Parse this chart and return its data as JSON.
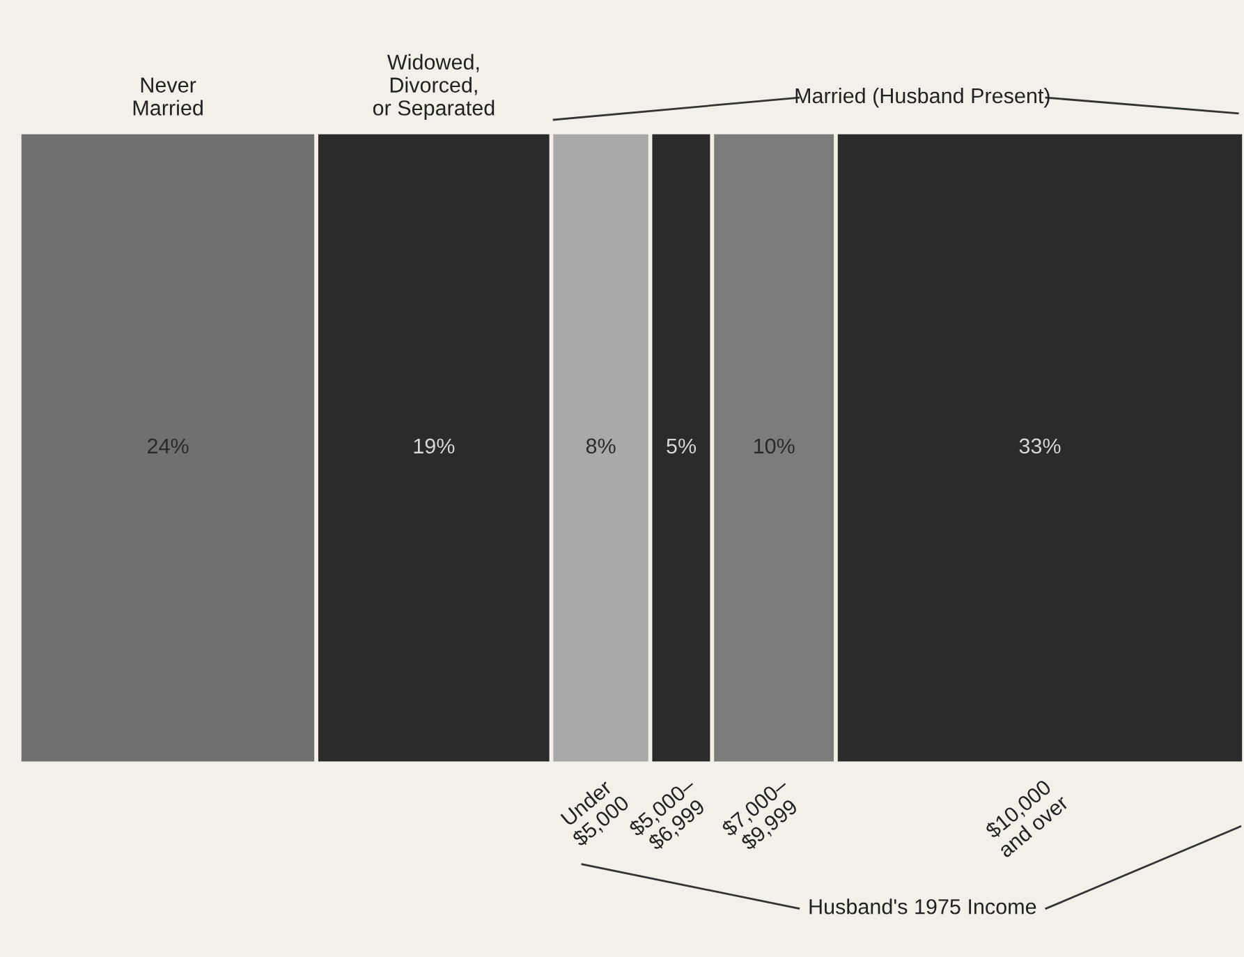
{
  "chart_data": {
    "type": "bar",
    "orientation": "horizontal",
    "stacked": true,
    "categories": [
      null
    ],
    "tick_labels": false,
    "grid": false,
    "series": [
      {
        "name": "Never\nMarried",
        "color": "#707070",
        "values": [
          24
        ],
        "value_labels": [
          "24%"
        ]
      },
      {
        "name": "Widowed,\nDivorced,\nor Separated",
        "color": "#2b2b2b",
        "values": [
          19
        ],
        "value_labels": [
          "19%"
        ]
      },
      {
        "name": "Under\n$5,000",
        "color": "#a9a9a9",
        "values": [
          8
        ],
        "value_labels": [
          "8%"
        ]
      },
      {
        "name": "$5,000–\n$6,999",
        "color": "#2b2b2b",
        "values": [
          5
        ],
        "value_labels": [
          "5%"
        ]
      },
      {
        "name": "$7,000–\n$9,999",
        "color": "#7c7c7c",
        "values": [
          10
        ],
        "value_labels": [
          "10%"
        ]
      },
      {
        "name": "$10,000\nand over",
        "color": "#2b2b2b",
        "values": [
          33
        ],
        "value_labels": [
          "33%"
        ]
      }
    ],
    "annotations": [
      "Married (Husband Present)",
      "Husband's 1975 Income"
    ]
  }
}
